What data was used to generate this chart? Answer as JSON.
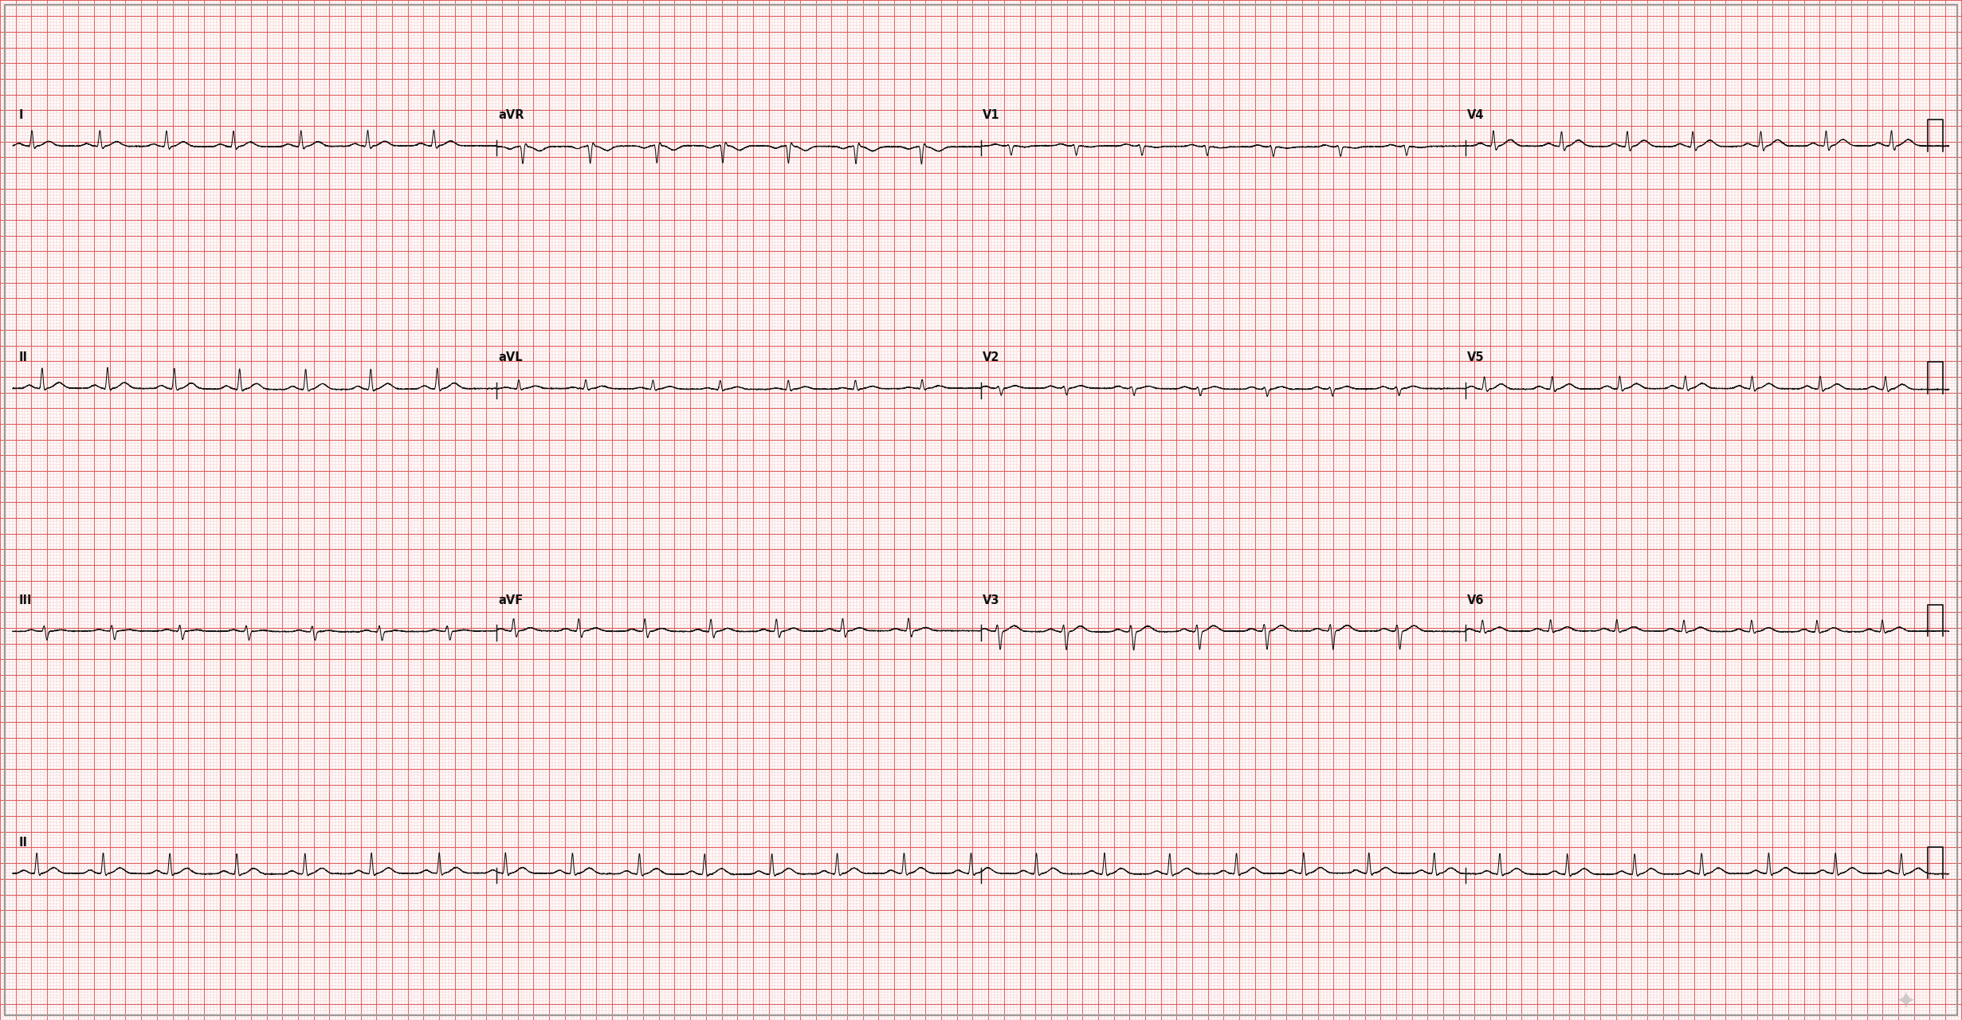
{
  "bg_color": "#ffffff",
  "grid_minor_color": "#f5c0c0",
  "grid_major_color": "#e06060",
  "label_color": "#111111",
  "fig_width": 24.62,
  "fig_height": 12.8,
  "dpi": 100,
  "minor_grid_mm": 1,
  "major_grid_mm": 5,
  "mm_per_inch": 25.4,
  "speed_mm_per_s": 25,
  "mv_per_mm": 0.1,
  "row_labels": [
    "I",
    "II",
    "III",
    "II"
  ],
  "col_labels": [
    "aVR",
    "aVL",
    "aVF",
    "V1",
    "V2",
    "V3",
    "V4",
    "V5",
    "V6"
  ]
}
